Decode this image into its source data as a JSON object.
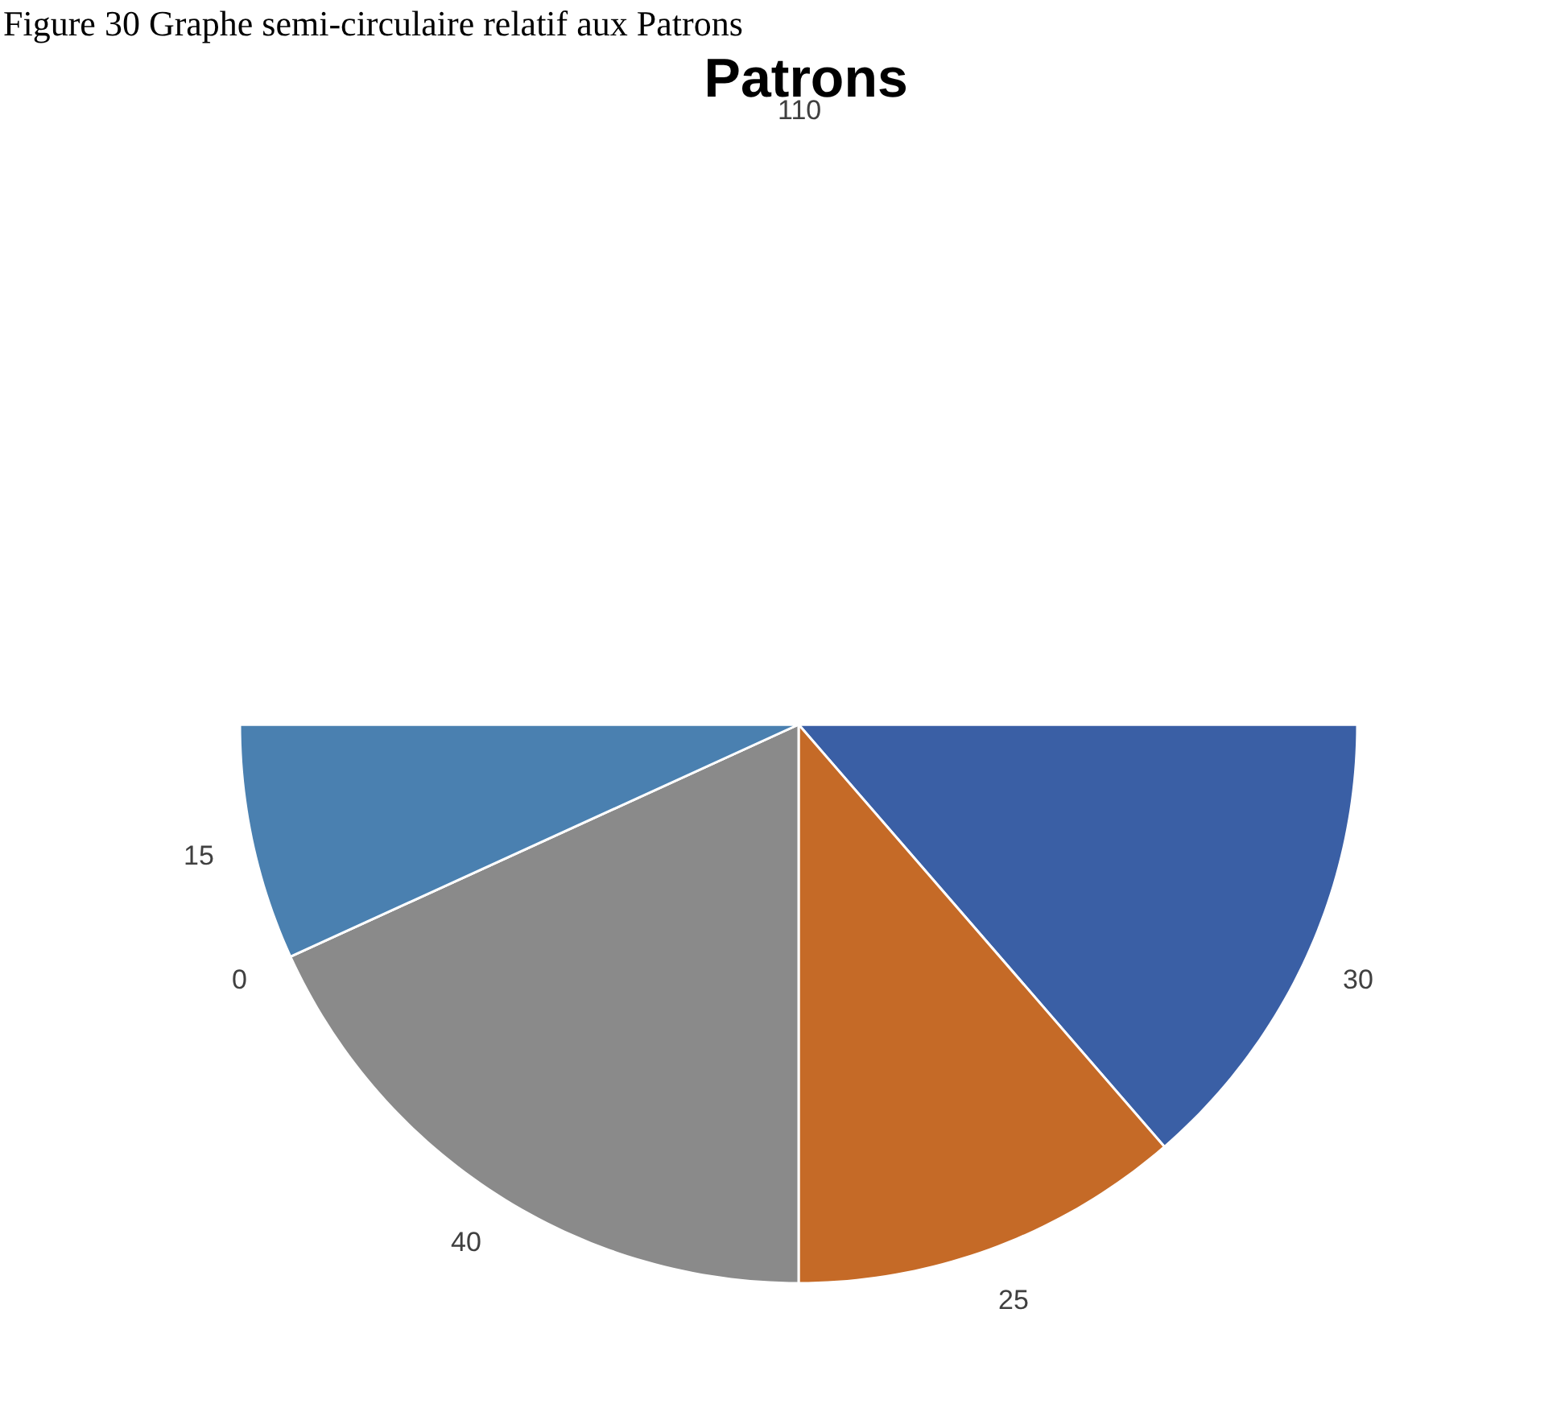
{
  "chart_data": {
    "type": "pie",
    "title": "Patrons",
    "annotations": [
      "Figure 30 Graphe semi-circulaire relatif aux Patrons"
    ],
    "values": [
      30,
      25,
      40,
      0,
      15,
      110
    ],
    "colors": [
      "#3a5fa5",
      "#c56a27",
      "#8a8a8a",
      "#c99a10",
      "#4a80b0",
      "#ffffff"
    ],
    "value_labels": [
      "30",
      "25",
      "40",
      "0",
      "15",
      "110"
    ]
  }
}
